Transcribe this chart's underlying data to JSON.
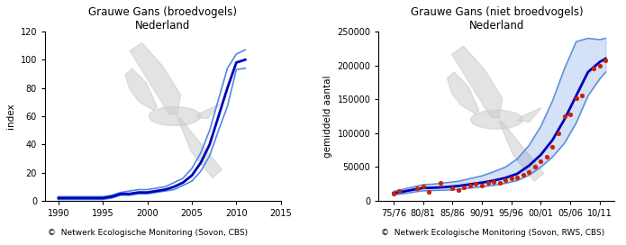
{
  "left": {
    "title": "Grauwe Gans (broedvogels)\nNederland",
    "ylabel": "index",
    "xlim": [
      1988.5,
      2014.5
    ],
    "ylim": [
      0,
      120
    ],
    "xticks": [
      1990,
      1995,
      2000,
      2005,
      2010,
      2015
    ],
    "yticks": [
      0,
      20,
      40,
      60,
      80,
      100,
      120
    ],
    "copyright": "©  Netwerk Ecologische Monitoring (Sovon, CBS)",
    "line_x": [
      1990,
      1991,
      1992,
      1993,
      1994,
      1995,
      1996,
      1997,
      1998,
      1999,
      2000,
      2001,
      2002,
      2003,
      2004,
      2005,
      2006,
      2007,
      2008,
      2009,
      2010,
      2011
    ],
    "line_y": [
      2,
      2,
      2,
      2,
      2,
      2,
      3,
      5,
      5,
      6,
      6,
      7,
      8,
      10,
      13,
      18,
      27,
      40,
      60,
      80,
      98,
      100
    ],
    "ci_upper": [
      3,
      3,
      3,
      3,
      3,
      3,
      4,
      6,
      7,
      8,
      8,
      9,
      10,
      13,
      16,
      23,
      34,
      50,
      72,
      94,
      104,
      107
    ],
    "ci_lower": [
      1,
      1,
      1,
      1,
      1,
      1,
      2,
      4,
      4,
      5,
      5,
      6,
      7,
      8,
      11,
      14,
      21,
      32,
      50,
      67,
      93,
      94
    ]
  },
  "right": {
    "title": "Grauwe Gans (niet broedvogels)\nNederland",
    "ylabel": "gemiddeld aantal",
    "xlim": [
      -0.5,
      7.5
    ],
    "ylim": [
      0,
      250000
    ],
    "xtick_pos": [
      0,
      1,
      2,
      3,
      4,
      5,
      6,
      7
    ],
    "xtick_labels": [
      "75/76",
      "80/81",
      "85/86",
      "90/91",
      "95/96",
      "00/01",
      "05/06",
      "10/11"
    ],
    "yticks": [
      0,
      50000,
      100000,
      150000,
      200000,
      250000
    ],
    "ytick_labels": [
      "0",
      "50000",
      "100000",
      "150000",
      "200000",
      "250000"
    ],
    "copyright": "©  Netwerk Ecologische Monitoring (Sovon, RWS, CBS)",
    "scatter_x": [
      0.0,
      0.2,
      0.8,
      1.0,
      1.2,
      1.6,
      2.0,
      2.2,
      2.4,
      2.6,
      2.8,
      3.0,
      3.2,
      3.4,
      3.6,
      3.8,
      4.0,
      4.2,
      4.4,
      4.6,
      4.8,
      5.0,
      5.2,
      5.4,
      5.6,
      5.8,
      6.0,
      6.2,
      6.4,
      6.8,
      7.0,
      7.2
    ],
    "scatter_y": [
      11000,
      15000,
      18000,
      21000,
      14000,
      27000,
      18000,
      16000,
      20000,
      23000,
      25000,
      22000,
      27000,
      28000,
      27000,
      30000,
      33000,
      35000,
      38000,
      42000,
      50000,
      58000,
      65000,
      80000,
      100000,
      125000,
      127000,
      152000,
      155000,
      195000,
      200000,
      207000
    ],
    "line_x": [
      0.0,
      0.3,
      0.6,
      1.0,
      1.4,
      1.8,
      2.2,
      2.6,
      3.0,
      3.4,
      3.8,
      4.2,
      4.6,
      5.0,
      5.4,
      5.8,
      6.2,
      6.6,
      7.0,
      7.2
    ],
    "line_y": [
      11500,
      13500,
      16000,
      19000,
      19500,
      20500,
      22000,
      24500,
      27000,
      30000,
      34000,
      40000,
      52000,
      68000,
      90000,
      120000,
      155000,
      190000,
      205000,
      210000
    ],
    "ci_upper": [
      14000,
      17000,
      20000,
      24000,
      25000,
      27000,
      29000,
      33000,
      37000,
      43000,
      50000,
      62000,
      82000,
      110000,
      148000,
      195000,
      235000,
      240000,
      238000,
      240000
    ],
    "ci_lower": [
      9000,
      10500,
      12500,
      15000,
      15500,
      16000,
      17000,
      19000,
      21000,
      23000,
      26000,
      30000,
      38000,
      50000,
      65000,
      85000,
      115000,
      155000,
      180000,
      190000
    ]
  },
  "bg_color": "#ffffff",
  "bird_color": "#cccccc",
  "line_color_dark": "#0000bb",
  "line_color_light": "#5588dd",
  "scatter_color": "#cc2200",
  "title_fontsize": 8.5,
  "label_fontsize": 7.5,
  "tick_fontsize": 7,
  "copyright_fontsize": 6.5
}
